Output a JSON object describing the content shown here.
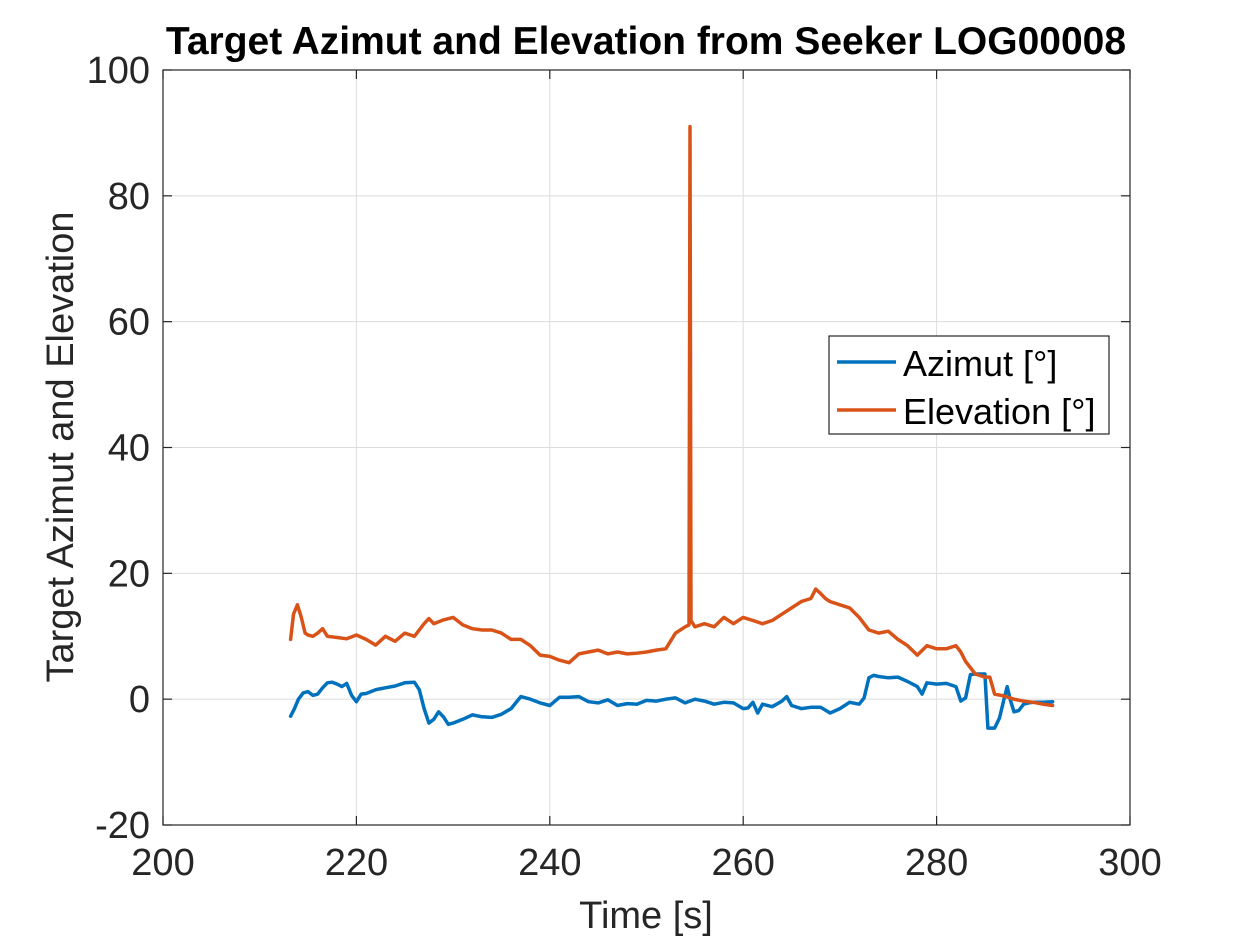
{
  "chart_data": {
    "type": "line",
    "title": "Target Azimut and Elevation from Seeker LOG00008",
    "xlabel": "Time [s]",
    "ylabel": "Target Azimut and Elevation",
    "xlim": [
      200,
      300
    ],
    "ylim": [
      -20,
      100
    ],
    "xticks": [
      200,
      220,
      240,
      260,
      280,
      300
    ],
    "yticks": [
      -20,
      0,
      20,
      40,
      60,
      80,
      100
    ],
    "xtick_labels": [
      "200",
      "220",
      "240",
      "260",
      "280",
      "300"
    ],
    "ytick_labels": [
      "-20",
      "0",
      "20",
      "40",
      "60",
      "80",
      "100"
    ],
    "grid": true,
    "legend_position": "right, above middle",
    "series": [
      {
        "name": "Azimut [°]",
        "color": "#0072BD",
        "x": [
          213.2,
          213.6,
          214.0,
          214.5,
          215.0,
          215.5,
          216.0,
          216.5,
          217.0,
          217.5,
          218.0,
          218.5,
          219.0,
          219.5,
          220.0,
          220.5,
          221.0,
          222.0,
          223.0,
          224.0,
          225.0,
          226.0,
          226.5,
          227.0,
          227.5,
          228.0,
          228.5,
          229.0,
          229.5,
          230.0,
          231.0,
          232.0,
          233.0,
          234.0,
          235.0,
          236.0,
          237.0,
          238.0,
          239.0,
          240.0,
          241.0,
          242.0,
          243.0,
          244.0,
          245.0,
          246.0,
          247.0,
          248.0,
          249.0,
          250.0,
          251.0,
          252.0,
          253.0,
          254.0,
          255.0,
          256.0,
          257.0,
          258.0,
          259.0,
          260.0,
          260.5,
          261.0,
          261.5,
          262.0,
          263.0,
          264.0,
          264.5,
          265.0,
          266.0,
          267.0,
          268.0,
          269.0,
          270.0,
          271.0,
          272.0,
          272.5,
          273.0,
          273.5,
          274.0,
          275.0,
          276.0,
          277.0,
          278.0,
          278.5,
          279.0,
          280.0,
          281.0,
          282.0,
          282.5,
          283.0,
          283.5,
          284.0,
          285.0,
          285.3,
          285.5,
          286.0,
          286.5,
          287.0,
          287.3,
          287.6,
          288.0,
          288.5,
          289.0,
          289.5,
          290.0,
          291.0,
          292.0
        ],
        "values": [
          -2.7,
          -1.5,
          0.0,
          1.0,
          1.2,
          0.6,
          0.8,
          1.8,
          2.6,
          2.7,
          2.4,
          2.0,
          2.5,
          0.6,
          -0.4,
          0.8,
          0.9,
          1.5,
          1.8,
          2.1,
          2.6,
          2.7,
          1.5,
          -1.5,
          -3.8,
          -3.2,
          -2.0,
          -2.8,
          -4.0,
          -3.8,
          -3.2,
          -2.5,
          -2.8,
          -2.9,
          -2.4,
          -1.5,
          0.4,
          0.0,
          -0.6,
          -1.0,
          0.3,
          0.3,
          0.4,
          -0.4,
          -0.6,
          -0.1,
          -1.0,
          -0.7,
          -0.8,
          -0.2,
          -0.3,
          0.0,
          0.2,
          -0.6,
          0.0,
          -0.3,
          -0.8,
          -0.5,
          -0.6,
          -1.5,
          -1.4,
          -0.5,
          -2.2,
          -0.8,
          -1.2,
          -0.3,
          0.4,
          -1.0,
          -1.5,
          -1.3,
          -1.3,
          -2.2,
          -1.5,
          -0.5,
          -0.8,
          0.2,
          3.4,
          3.8,
          3.6,
          3.4,
          3.5,
          2.8,
          2.0,
          0.8,
          2.6,
          2.4,
          2.5,
          2.0,
          -0.3,
          0.2,
          3.9,
          4.0,
          4.0,
          -4.6,
          -4.6,
          -4.6,
          -3.0,
          0.2,
          2.0,
          0.0,
          -2.0,
          -1.8,
          -0.8,
          -0.6,
          -0.5,
          -0.5,
          -0.4
        ]
      },
      {
        "name": "Elevation [°]",
        "color": "#D95319",
        "x": [
          213.2,
          213.5,
          213.9,
          214.3,
          214.7,
          215.0,
          215.5,
          216.0,
          216.5,
          217.0,
          218.0,
          219.0,
          220.0,
          221.0,
          222.0,
          223.0,
          224.0,
          225.0,
          226.0,
          227.0,
          227.5,
          228.0,
          229.0,
          230.0,
          231.0,
          232.0,
          233.0,
          234.0,
          235.0,
          236.0,
          237.0,
          238.0,
          239.0,
          240.0,
          241.0,
          242.0,
          243.0,
          244.0,
          245.0,
          246.0,
          247.0,
          248.0,
          249.0,
          250.0,
          251.0,
          252.0,
          253.0,
          254.0,
          254.4,
          254.5,
          254.6,
          255.0,
          256.0,
          257.0,
          258.0,
          259.0,
          260.0,
          261.0,
          262.0,
          263.0,
          264.0,
          265.0,
          266.0,
          267.0,
          267.5,
          268.0,
          268.5,
          269.0,
          270.0,
          271.0,
          272.0,
          273.0,
          274.0,
          275.0,
          276.0,
          277.0,
          278.0,
          279.0,
          280.0,
          281.0,
          282.0,
          282.5,
          283.0,
          284.0,
          285.0,
          285.5,
          286.0,
          287.0,
          288.0,
          289.0,
          290.0,
          291.0,
          292.0
        ],
        "values": [
          9.5,
          13.5,
          15.0,
          13.0,
          10.5,
          10.2,
          10.0,
          10.5,
          11.2,
          10.0,
          9.8,
          9.6,
          10.2,
          9.5,
          8.6,
          10.0,
          9.2,
          10.5,
          10.0,
          12.0,
          12.8,
          12.0,
          12.6,
          13.0,
          11.8,
          11.2,
          11.0,
          11.0,
          10.5,
          9.5,
          9.5,
          8.5,
          7.0,
          6.8,
          6.2,
          5.8,
          7.2,
          7.5,
          7.8,
          7.2,
          7.5,
          7.2,
          7.3,
          7.5,
          7.8,
          8.0,
          10.5,
          11.5,
          11.8,
          91.0,
          12.5,
          11.5,
          12.0,
          11.5,
          13.0,
          12.0,
          13.0,
          12.5,
          12.0,
          12.5,
          13.5,
          14.5,
          15.5,
          16.0,
          17.5,
          16.8,
          16.0,
          15.5,
          15.0,
          14.5,
          13.0,
          11.0,
          10.5,
          10.8,
          9.5,
          8.5,
          7.0,
          8.5,
          8.0,
          8.0,
          8.5,
          7.5,
          6.0,
          4.0,
          3.5,
          3.5,
          0.8,
          0.5,
          0.0,
          -0.3,
          -0.5,
          -0.8,
          -1.0
        ]
      }
    ]
  }
}
